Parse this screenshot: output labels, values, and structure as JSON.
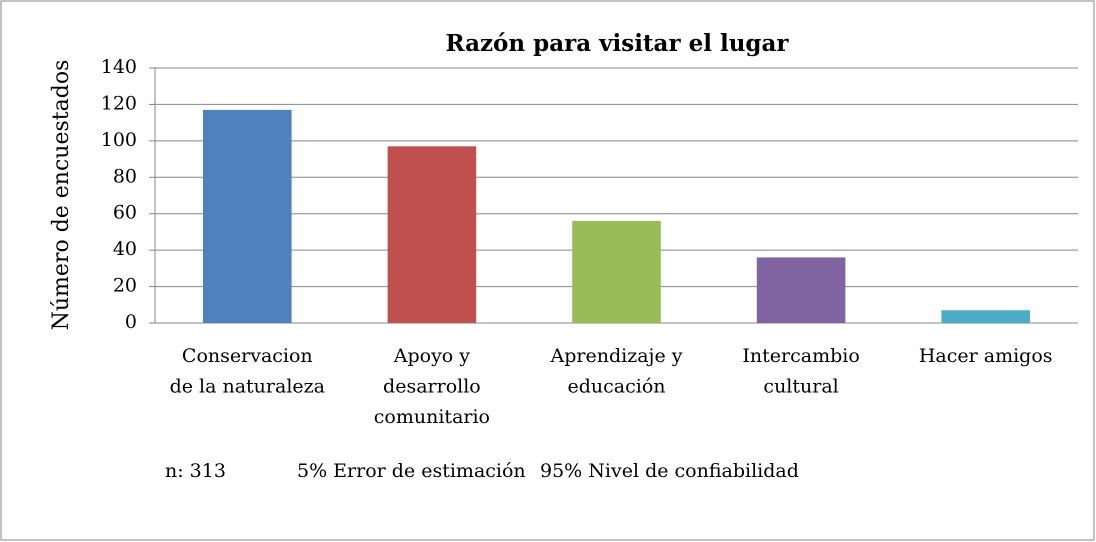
{
  "chart_data": {
    "type": "bar",
    "title": "Razón para visitar el lugar",
    "y_label": "Número de encuestados",
    "categories": [
      [
        "Conservacion",
        "de la naturaleza"
      ],
      [
        "Apoyo y",
        "desarrollo",
        "comunitario"
      ],
      [
        "Aprendizaje y",
        "educación"
      ],
      [
        "Intercambio",
        "cultural"
      ],
      [
        "Hacer amigos"
      ]
    ],
    "values": [
      117,
      97,
      56,
      36,
      7
    ],
    "colors": [
      "#4f81bd",
      "#c0504d",
      "#9bbb59",
      "#8064a2",
      "#4bacc6"
    ],
    "ylim": [
      0,
      140
    ],
    "yticks": [
      0,
      20,
      40,
      60,
      80,
      100,
      120,
      140
    ],
    "grid": true,
    "annotations": [
      "n: 313",
      "5% Error de estimación",
      "95% Nivel de confiabilidad"
    ]
  }
}
